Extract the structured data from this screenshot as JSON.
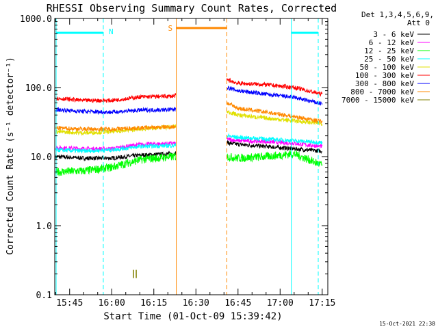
{
  "title": "RHESSI Observing Summary Count Rates, Corrected",
  "footer_timestamp": "15-Oct-2021 22:38",
  "chart_data": {
    "type": "line",
    "title": "RHESSI Observing Summary Count Rates, Corrected",
    "xlabel": "Start Time (01-Oct-09 15:39:42)",
    "ylabel": "Corrected Count Rate (s⁻¹ detector⁻¹)",
    "y_scale": "log",
    "ylim": [
      0.1,
      1000.0
    ],
    "xlim": [
      "15:39:42",
      "17:17:00"
    ],
    "x_ticks": [
      "15:45",
      "16:00",
      "16:15",
      "16:30",
      "16:45",
      "17:00",
      "17:15"
    ],
    "y_ticks": [
      "0.1",
      "1.0",
      "10.0",
      "100.0",
      "1000.0"
    ],
    "legend_position": "top-right",
    "legend_header": [
      "Det 1,3,4,5,6,9,",
      "Att 0"
    ],
    "gap": [
      "16:23",
      "16:41"
    ],
    "series": [
      {
        "name": "3 - 6 keV",
        "color": "#000000",
        "x": [
          "15:40",
          "15:50",
          "16:00",
          "16:10",
          "16:22",
          "16:41",
          "16:45",
          "16:55",
          "17:05",
          "17:15"
        ],
        "values": [
          10,
          9.5,
          9.5,
          10.5,
          11,
          16,
          15,
          14,
          13,
          12
        ]
      },
      {
        "name": "6 - 12 keV",
        "color": "#ff00ff",
        "x": [
          "15:40",
          "15:50",
          "16:00",
          "16:10",
          "16:22",
          "16:41",
          "16:45",
          "16:55",
          "17:05",
          "17:15"
        ],
        "values": [
          13.5,
          13,
          13,
          15,
          15.5,
          18,
          17,
          16.5,
          15.5,
          14
        ]
      },
      {
        "name": "12 - 25 keV",
        "color": "#00ff00",
        "x": [
          "15:40",
          "15:50",
          "16:00",
          "16:10",
          "16:22",
          "16:41",
          "16:45",
          "16:55",
          "17:05",
          "17:15"
        ],
        "values": [
          6,
          6.2,
          7,
          9,
          10,
          10,
          9.5,
          10,
          11,
          7.5
        ]
      },
      {
        "name": "25 - 50 keV",
        "color": "#00ffff",
        "x": [
          "15:40",
          "15:50",
          "16:00",
          "16:10",
          "16:22",
          "16:41",
          "16:45",
          "16:55",
          "17:05",
          "17:15"
        ],
        "values": [
          12.5,
          12,
          12.5,
          14,
          14.5,
          20,
          19,
          18,
          17,
          16
        ]
      },
      {
        "name": "50 - 100 keV",
        "color": "#e0e000",
        "x": [
          "15:40",
          "15:50",
          "16:00",
          "16:10",
          "16:22",
          "16:41",
          "16:45",
          "16:55",
          "17:05",
          "17:15"
        ],
        "values": [
          23,
          22,
          23,
          25,
          27,
          45,
          40,
          36,
          33,
          30
        ]
      },
      {
        "name": "100 - 300 keV",
        "color": "#ff0000",
        "x": [
          "15:40",
          "15:50",
          "16:00",
          "16:10",
          "16:22",
          "16:41",
          "16:45",
          "16:55",
          "17:05",
          "17:15"
        ],
        "values": [
          70,
          65,
          65,
          73,
          75,
          130,
          115,
          110,
          100,
          80
        ]
      },
      {
        "name": "300 - 800 keV",
        "color": "#0000ff",
        "x": [
          "15:40",
          "15:50",
          "16:00",
          "16:10",
          "16:22",
          "16:41",
          "16:45",
          "16:55",
          "17:05",
          "17:15"
        ],
        "values": [
          48,
          45,
          44,
          47,
          48,
          100,
          90,
          80,
          72,
          58
        ]
      },
      {
        "name": "800 - 7000 keV",
        "color": "#ff8800",
        "x": [
          "15:40",
          "15:50",
          "16:00",
          "16:10",
          "16:22",
          "16:41",
          "16:45",
          "16:55",
          "17:05",
          "17:15"
        ],
        "values": [
          26,
          25,
          25,
          26,
          27,
          60,
          50,
          44,
          38,
          32
        ]
      },
      {
        "name": "7000 - 15000 keV",
        "color": "#808000",
        "x": [
          "16:08"
        ],
        "values": [
          0.2
        ]
      }
    ],
    "annotations": [
      {
        "text": "N",
        "color": "#00ffff"
      },
      {
        "text": "S",
        "color": "#ff8800"
      }
    ]
  }
}
